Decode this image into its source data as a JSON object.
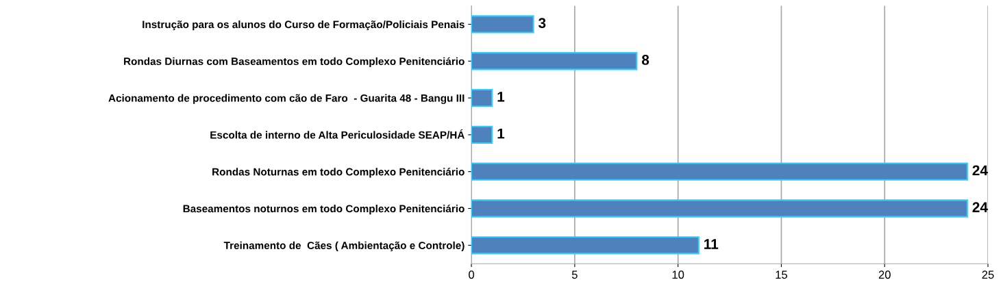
{
  "chart_data": {
    "type": "bar",
    "orientation": "horizontal",
    "categories": [
      "Instrução para os alunos do Curso de Formação/Policiais Penais",
      "Rondas Diurnas com Baseamentos em todo Complexo Penitenciário",
      "Acionamento de procedimento com cão de Faro  - Guarita 48 - Bangu III",
      "Escolta de interno de Alta Periculosidade SEAP/HÁ",
      "Rondas Noturnas em todo Complexo Penitenciário",
      "Baseamentos noturnos em todo Complexo Penitenciário",
      "Treinamento de  Cães ( Ambientação e Controle)"
    ],
    "values": [
      3,
      8,
      1,
      1,
      24,
      24,
      11
    ],
    "color": "#4f81bd",
    "data_labels": true,
    "xlim": [
      0,
      25
    ],
    "xticks": [
      0,
      5,
      10,
      15,
      20,
      25
    ],
    "grid": "x",
    "legend": false
  }
}
